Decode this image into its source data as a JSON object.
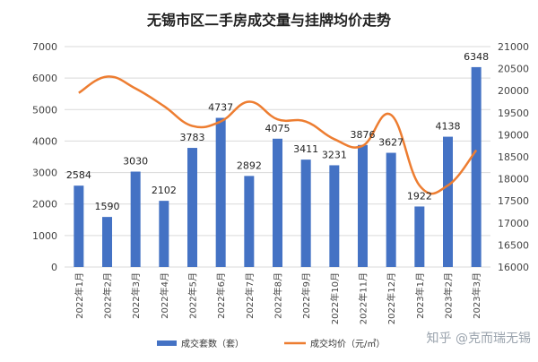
{
  "chart_data": {
    "type": "bar",
    "title": "无锡市区二手房成交量与挂牌均价走势",
    "categories": [
      "2022年1月",
      "2022年2月",
      "2022年3月",
      "2022年4月",
      "2022年5月",
      "2022年6月",
      "2022年7月",
      "2022年8月",
      "2022年9月",
      "2022年10月",
      "2022年11月",
      "2022年12月",
      "2023年1月",
      "2023年2月",
      "2023年3月"
    ],
    "series": [
      {
        "name": "成交套数（套）",
        "type": "bar",
        "axis": "left",
        "color": "#4472C4",
        "values": [
          2584,
          1590,
          3030,
          2102,
          3783,
          4737,
          2892,
          4075,
          3411,
          3231,
          3876,
          3627,
          1922,
          4138,
          6348
        ]
      },
      {
        "name": "成交均价（元/㎡）",
        "type": "line",
        "axis": "right",
        "color": "#ED7D31",
        "values": [
          19950,
          20320,
          20050,
          19650,
          19200,
          19300,
          19750,
          19350,
          19300,
          18900,
          18750,
          19450,
          17850,
          17850,
          18650
        ]
      }
    ],
    "y_left": {
      "ylim": [
        0,
        7000
      ],
      "ticks": [
        "0",
        "1000",
        "2000",
        "3000",
        "4000",
        "5000",
        "6000",
        "7000"
      ]
    },
    "y_right": {
      "ylim": [
        16000,
        21000
      ],
      "ticks": [
        "16000",
        "16500",
        "17000",
        "17500",
        "18000",
        "18500",
        "19000",
        "19500",
        "20000",
        "20500",
        "21000"
      ]
    },
    "grid": true,
    "legend_position": "bottom"
  },
  "watermark": {
    "text": "知乎 @克而瑞无锡",
    "stamp_text": "克 而 瑞 · 無 錫"
  }
}
